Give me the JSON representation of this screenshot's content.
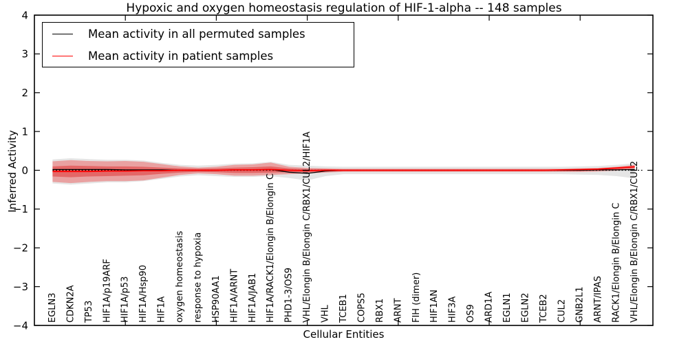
{
  "figure": {
    "background": "#ffffff",
    "frame_color": "#000000"
  },
  "chart_data": {
    "type": "line",
    "title": "Hypoxic and oxygen homeostasis regulation of HIF-1-alpha -- 148 samples",
    "xlabel": "Cellular Entities",
    "ylabel": "Inferred Activity",
    "xlim": [
      0,
      34
    ],
    "ylim": [
      -4,
      4
    ],
    "grid": false,
    "legend_position": "upper left",
    "xticks": [
      5,
      10,
      15,
      20,
      25,
      30
    ],
    "yticks": [
      4,
      3,
      2,
      1,
      0,
      -1,
      -2,
      -3,
      -4
    ],
    "ytick_labels": [
      "4",
      "3",
      "2",
      "1",
      "0",
      "−1",
      "−2",
      "−3",
      "−4"
    ],
    "categories": [
      "EGLN3",
      "CDKN2A",
      "TP53",
      "HIF1A/p19ARF",
      "HIF1A/p53",
      "HIF1A/Hsp90",
      "HIF1A",
      "oxygen homeostasis",
      "response to hypoxia",
      "HSP90AA1",
      "HIF1A/ARNT",
      "HIF1A/JAB1",
      "HIF1A/RACK1/Elongin B/Elongin C",
      "PHD1-3/OS9",
      "VHL/Elongin B/Elongin C/RBX1/CUL2/HIF1A",
      "VHL",
      "TCEB1",
      "COPS5",
      "RBX1",
      "ARNT",
      "FIH (dimer)",
      "HIF1AN",
      "HIF3A",
      "OS9",
      "ARD1A",
      "EGLN1",
      "EGLN2",
      "TCEB2",
      "CUL2",
      "GNB2L1",
      "ARNT/IPAS",
      "RACK1/Elongin B/Elongin C",
      "VHL/Elongin B/Elongin C/RBX1/CUL2"
    ],
    "legend": [
      {
        "label": "Mean activity in all permuted samples",
        "color": "#000000"
      },
      {
        "label": "Mean activity in patient samples",
        "color": "#ff0000"
      }
    ],
    "zero_line": {
      "value": 0,
      "from_x": 1,
      "to_x": 33.5,
      "color": "#000000",
      "style": "dotted"
    },
    "bands": [
      {
        "name": "permuted-spread-band",
        "color": "#999999",
        "opacity": 0.25,
        "hi": [
          0.28,
          0.31,
          0.29,
          0.27,
          0.27,
          0.25,
          0.19,
          0.14,
          0.12,
          0.14,
          0.17,
          0.18,
          0.22,
          0.14,
          0.12,
          0.1,
          0.09,
          0.09,
          0.09,
          0.09,
          0.09,
          0.09,
          0.09,
          0.09,
          0.09,
          0.09,
          0.09,
          0.09,
          0.09,
          0.1,
          0.11,
          0.14,
          0.18
        ],
        "lo": [
          -0.34,
          -0.37,
          -0.34,
          -0.31,
          -0.31,
          -0.28,
          -0.22,
          -0.16,
          -0.13,
          -0.15,
          -0.17,
          -0.17,
          -0.15,
          -0.2,
          -0.26,
          -0.15,
          -0.1,
          -0.1,
          -0.1,
          -0.1,
          -0.1,
          -0.1,
          -0.1,
          -0.1,
          -0.1,
          -0.1,
          -0.1,
          -0.1,
          -0.1,
          -0.11,
          -0.12,
          -0.15,
          -0.21
        ]
      },
      {
        "name": "patient-outer-band",
        "color": "#ee3333",
        "opacity": 0.38,
        "hi": [
          0.23,
          0.26,
          0.24,
          0.23,
          0.24,
          0.22,
          0.16,
          0.1,
          0.07,
          0.09,
          0.14,
          0.15,
          0.2,
          0.09,
          0.06,
          0.05,
          0.04,
          0.04,
          0.04,
          0.04,
          0.04,
          0.04,
          0.04,
          0.04,
          0.04,
          0.04,
          0.04,
          0.04,
          0.04,
          0.05,
          0.06,
          0.09,
          0.14
        ],
        "lo": [
          -0.3,
          -0.33,
          -0.3,
          -0.28,
          -0.28,
          -0.26,
          -0.19,
          -0.12,
          -0.08,
          -0.1,
          -0.14,
          -0.14,
          -0.12,
          -0.1,
          -0.08,
          -0.06,
          -0.04,
          -0.04,
          -0.04,
          -0.04,
          -0.04,
          -0.04,
          -0.04,
          -0.04,
          -0.04,
          -0.04,
          -0.04,
          -0.04,
          -0.04,
          -0.04,
          -0.03,
          -0.01,
          0.04
        ]
      },
      {
        "name": "patient-inner-band",
        "color": "#dd2222",
        "opacity": 0.45,
        "hi": [
          0.1,
          0.12,
          0.11,
          0.1,
          0.1,
          0.09,
          0.07,
          0.05,
          0.04,
          0.05,
          0.07,
          0.08,
          0.1,
          0.05,
          0.03,
          0.03,
          0.02,
          0.02,
          0.02,
          0.02,
          0.02,
          0.02,
          0.02,
          0.02,
          0.02,
          0.02,
          0.02,
          0.02,
          0.02,
          0.03,
          0.04,
          0.06,
          0.11
        ],
        "lo": [
          -0.16,
          -0.18,
          -0.16,
          -0.15,
          -0.14,
          -0.13,
          -0.09,
          -0.06,
          -0.04,
          -0.05,
          -0.07,
          -0.07,
          -0.06,
          -0.05,
          -0.04,
          -0.03,
          -0.02,
          -0.02,
          -0.02,
          -0.02,
          -0.02,
          -0.02,
          -0.02,
          -0.02,
          -0.02,
          -0.02,
          -0.02,
          -0.02,
          -0.02,
          -0.02,
          -0.01,
          0.01,
          0.06
        ]
      }
    ],
    "series": [
      {
        "name": "Mean activity in all permuted samples",
        "color": "#000000",
        "width": 1.3,
        "values": [
          0.02,
          0.02,
          0.02,
          0.02,
          0.01,
          0.01,
          0.01,
          0.0,
          0.0,
          0.0,
          0.01,
          0.01,
          0.02,
          -0.05,
          -0.08,
          -0.02,
          0.0,
          0.0,
          0.0,
          0.0,
          0.0,
          0.0,
          0.0,
          0.0,
          0.0,
          0.0,
          0.0,
          0.0,
          0.0,
          0.0,
          0.01,
          0.01,
          0.02
        ]
      },
      {
        "name": "Mean activity in patient samples",
        "color": "#ff0000",
        "width": 1.8,
        "values": [
          -0.03,
          -0.03,
          -0.03,
          -0.02,
          -0.02,
          -0.01,
          -0.01,
          0.0,
          0.0,
          0.0,
          0.01,
          0.01,
          0.02,
          0.0,
          -0.01,
          0.0,
          0.0,
          0.0,
          0.0,
          0.0,
          0.0,
          0.0,
          0.0,
          0.0,
          0.0,
          0.0,
          0.0,
          0.0,
          0.01,
          0.02,
          0.03,
          0.06,
          0.09
        ]
      }
    ]
  }
}
